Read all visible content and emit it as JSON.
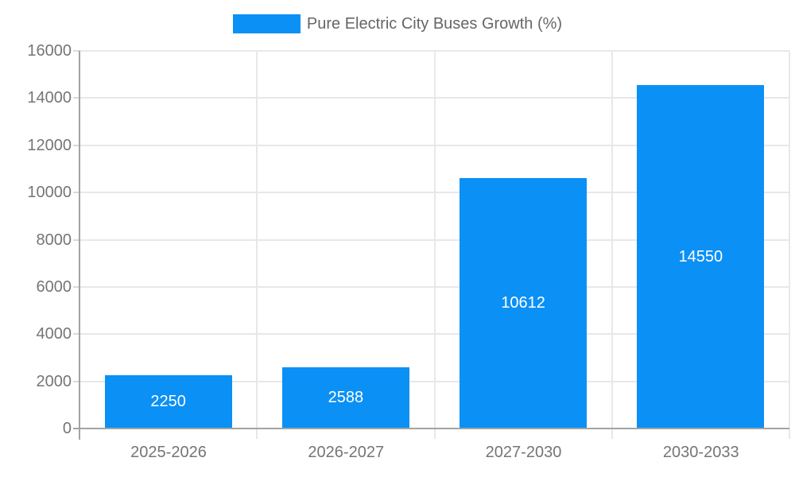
{
  "legend": {
    "label": "Pure Electric City Buses Growth (%)"
  },
  "colors": {
    "bar": "#0b90f5",
    "axis_line": "#a3a3a3",
    "gridline": "#e8e8e8",
    "tick": "#d9d9d9",
    "axis_label_text": "#757575",
    "legend_text": "#666666",
    "bar_value_text": "#ffffff",
    "background": "#ffffff"
  },
  "chart_data": {
    "type": "bar",
    "title": "Pure Electric City Buses Growth (%)",
    "categories": [
      "2025-2026",
      "2026-2027",
      "2027-2030",
      "2030-2033"
    ],
    "values": [
      2250,
      2588,
      10612,
      14550
    ],
    "xlabel": "",
    "ylabel": "",
    "ylim": [
      0,
      16000
    ],
    "ytick_step": 2000,
    "ytick_labels": [
      "0",
      "2000",
      "4000",
      "6000",
      "8000",
      "10000",
      "12000",
      "14000",
      "16000"
    ],
    "grid": true,
    "legend_position": "top-center",
    "bar_labels_inside": true
  }
}
